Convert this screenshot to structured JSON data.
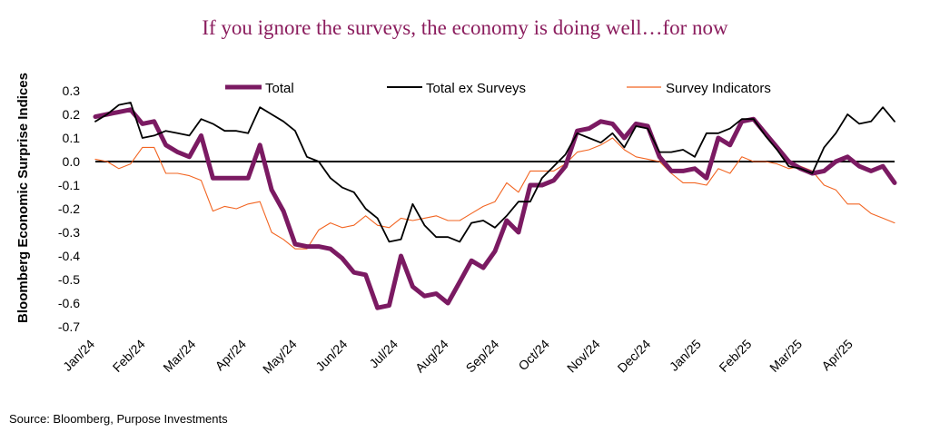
{
  "chart_data": {
    "type": "line",
    "title": "If you ignore the surveys, the economy is doing well…for now",
    "ylabel": "Bloomberg Economic Surprise Indices",
    "xlabel": "",
    "ylim": [
      -0.7,
      0.3
    ],
    "yticks": [
      "0.3",
      "0.2",
      "0.1",
      "0.0",
      "-0.1",
      "-0.2",
      "-0.3",
      "-0.4",
      "-0.5",
      "-0.6",
      "-0.7"
    ],
    "ytick_values": [
      0.3,
      0.2,
      0.1,
      0.0,
      -0.1,
      -0.2,
      -0.3,
      -0.4,
      -0.5,
      -0.6,
      -0.7
    ],
    "xtick_labels": [
      "Jan/24",
      "Feb/24",
      "Mar/24",
      "Apr/24",
      "May/24",
      "Jun/24",
      "Jul/24",
      "Aug/24",
      "Sep/24",
      "Oct/24",
      "Nov/24",
      "Dec/24",
      "Jan/25",
      "Feb/25",
      "Mar/25",
      "Apr/25"
    ],
    "weeks_per_month": 4.3,
    "legend_position": "top",
    "source": "Source: Bloomberg, Purpose Investments",
    "series": [
      {
        "name": "Total",
        "color": "#7B1A62",
        "width": "thick",
        "values": [
          0.19,
          0.2,
          0.21,
          0.22,
          0.16,
          0.17,
          0.07,
          0.04,
          0.02,
          0.11,
          -0.07,
          -0.07,
          -0.07,
          -0.07,
          0.07,
          -0.12,
          -0.21,
          -0.35,
          -0.36,
          -0.36,
          -0.37,
          -0.41,
          -0.47,
          -0.48,
          -0.62,
          -0.61,
          -0.4,
          -0.53,
          -0.57,
          -0.56,
          -0.6,
          -0.51,
          -0.42,
          -0.45,
          -0.38,
          -0.25,
          -0.3,
          -0.1,
          -0.1,
          -0.08,
          -0.02,
          0.13,
          0.14,
          0.17,
          0.16,
          0.1,
          0.16,
          0.15,
          0.02,
          -0.04,
          -0.04,
          -0.03,
          -0.07,
          0.1,
          0.07,
          0.17,
          0.18,
          0.12,
          0.06,
          0.0,
          -0.03,
          -0.05,
          -0.04,
          0.0,
          0.02,
          -0.02,
          -0.04,
          -0.02,
          -0.09
        ]
      },
      {
        "name": "Total ex Surveys",
        "color": "#000000",
        "width": "thin",
        "values": [
          0.17,
          0.2,
          0.24,
          0.25,
          0.1,
          0.11,
          0.13,
          0.12,
          0.11,
          0.18,
          0.16,
          0.13,
          0.13,
          0.12,
          0.23,
          0.2,
          0.17,
          0.13,
          0.02,
          0.0,
          -0.07,
          -0.11,
          -0.13,
          -0.2,
          -0.24,
          -0.34,
          -0.33,
          -0.18,
          -0.27,
          -0.32,
          -0.32,
          -0.34,
          -0.26,
          -0.25,
          -0.28,
          -0.23,
          -0.17,
          -0.17,
          -0.07,
          -0.02,
          0.03,
          0.12,
          0.1,
          0.08,
          0.12,
          0.06,
          0.15,
          0.14,
          0.04,
          0.04,
          0.05,
          0.02,
          0.12,
          0.12,
          0.14,
          0.18,
          0.18,
          0.11,
          0.05,
          -0.02,
          -0.03,
          -0.05,
          0.06,
          0.12,
          0.2,
          0.16,
          0.17,
          0.23,
          0.17
        ]
      },
      {
        "name": "Survey Indicators",
        "color": "#F26522",
        "width": "thin",
        "values": [
          0.01,
          0.0,
          -0.03,
          -0.01,
          0.06,
          0.06,
          -0.05,
          -0.05,
          -0.06,
          -0.08,
          -0.21,
          -0.19,
          -0.2,
          -0.18,
          -0.17,
          -0.3,
          -0.33,
          -0.37,
          -0.37,
          -0.29,
          -0.26,
          -0.28,
          -0.27,
          -0.23,
          -0.27,
          -0.28,
          -0.24,
          -0.25,
          -0.24,
          -0.23,
          -0.25,
          -0.25,
          -0.22,
          -0.19,
          -0.17,
          -0.09,
          -0.13,
          -0.04,
          -0.04,
          -0.04,
          -0.01,
          0.04,
          0.05,
          0.07,
          0.1,
          0.05,
          0.02,
          0.01,
          0.0,
          -0.05,
          -0.09,
          -0.09,
          -0.1,
          -0.03,
          -0.05,
          0.02,
          0.0,
          0.0,
          -0.01,
          -0.03,
          -0.02,
          -0.04,
          -0.1,
          -0.12,
          -0.18,
          -0.18,
          -0.22,
          -0.24,
          -0.26
        ]
      }
    ]
  }
}
